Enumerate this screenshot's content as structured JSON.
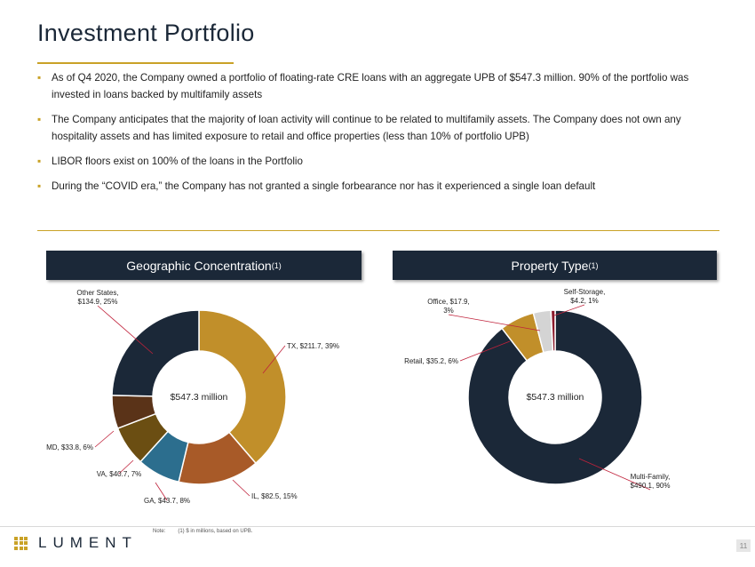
{
  "title": "Investment Portfolio",
  "bullets": [
    "As of Q4 2020,  the Company owned a portfolio of floating-rate CRE loans with an aggregate UPB of $547.3  million. 90% of the portfolio was invested in loans backed by multifamily assets",
    "The Company anticipates that the majority of loan activity will continue to be related to multifamily assets. The Company does not own any hospitality assets and has limited exposure to retail and office properties (less than 10% of portfolio UPB)",
    "LIBOR floors exist on 100% of the loans in the Portfolio",
    "During the “COVID era,” the Company has not granted a single forbearance nor has it experienced a single loan default"
  ],
  "bullet_glyph": "▪",
  "left_panel": {
    "title": "Geographic Concentration",
    "footnote": "(1)"
  },
  "right_panel": {
    "title": "Property Type",
    "footnote": "(1)"
  },
  "chart_data": [
    {
      "type": "pie",
      "style": "donut",
      "center_label": "$547.3 million",
      "slices": [
        {
          "label": "TX",
          "value": 211.7,
          "percent": 39,
          "text": "TX, $211.7, 39%",
          "color": "#c18f2a"
        },
        {
          "label": "IL",
          "value": 82.5,
          "percent": 15,
          "text": "IL, $82.5, 15%",
          "color": "#a85a28"
        },
        {
          "label": "GA",
          "value": 43.7,
          "percent": 8,
          "text": "GA, $43.7, 8%",
          "color": "#2c6e8e"
        },
        {
          "label": "VA",
          "value": 40.7,
          "percent": 7,
          "text": "VA, $40.7, 7%",
          "color": "#6b4e12"
        },
        {
          "label": "MD",
          "value": 33.8,
          "percent": 6,
          "text": "MD, $33.8, 6%",
          "color": "#5a3318"
        },
        {
          "label": "Other States",
          "value": 134.9,
          "percent": 25,
          "text": [
            "Other States,",
            "$134.9, 25%"
          ],
          "color": "#1b2838"
        }
      ]
    },
    {
      "type": "pie",
      "style": "donut",
      "center_label": "$547.3 million",
      "slices": [
        {
          "label": "Multi-Family",
          "value": 490.1,
          "percent": 90,
          "text": [
            "Multi-Family,",
            "$490.1, 90%"
          ],
          "color": "#1b2838"
        },
        {
          "label": "Retail",
          "value": 35.2,
          "percent": 6,
          "text": "Retail, $35.2, 6%",
          "color": "#c18f2a"
        },
        {
          "label": "Office",
          "value": 17.9,
          "percent": 3,
          "text": [
            "Office, $17.9,",
            "3%"
          ],
          "color": "#d4d4d4"
        },
        {
          "label": "Self-Storage",
          "value": 4.2,
          "percent": 1,
          "text": [
            "Self-Storage,",
            "$4.2, 1%"
          ],
          "color": "#8b1a2b"
        }
      ]
    }
  ],
  "footer": {
    "note_label": "Note:",
    "note_text": "(1) $ in millions, based on UPB.",
    "logo_text": "LUMENT",
    "logo_color": "#c9a227",
    "page_number": "11"
  },
  "colors": {
    "navy": "#1b2838",
    "gold": "#c9a227",
    "leader": "#c0223b"
  }
}
